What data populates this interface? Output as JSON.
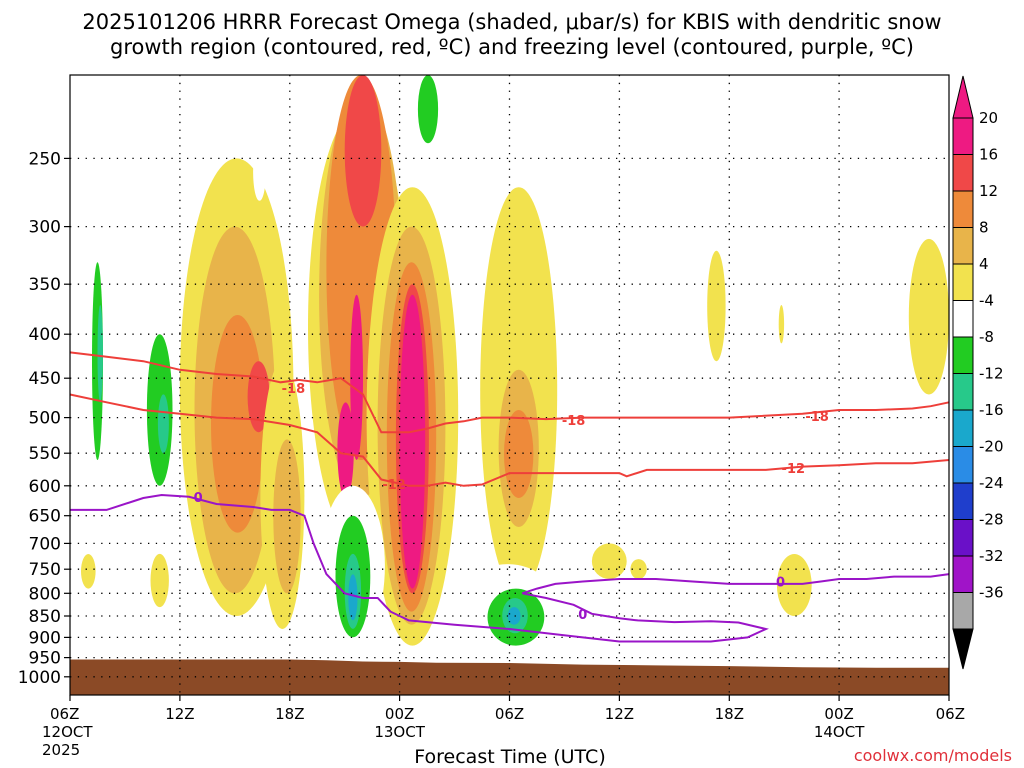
{
  "header": {
    "title_line1": "2025101206 HRRR Forecast Omega (shaded, μbar/s) for KBIS with dendritic snow",
    "title_line2": "growth region (contoured, red, ºC) and freezing level (contoured, purple, ºC)"
  },
  "footer": {
    "xlabel": "Forecast Time (UTC)",
    "credit": "coolwx.com/models"
  },
  "colors": {
    "ground": "#8b4a26",
    "snow_growth_contour": "#ee3f3a",
    "freezing_contour": "#9a14c8",
    "credit": "#e0303a",
    "grid": "#000000"
  },
  "chart_data": {
    "type": "heatmap",
    "y_axis": {
      "scale": "log-pressure",
      "reversed": true,
      "range": [
        200,
        1050
      ],
      "ticks": [
        250,
        300,
        350,
        400,
        450,
        500,
        550,
        600,
        650,
        700,
        750,
        800,
        850,
        900,
        950,
        1000
      ]
    },
    "x_axis": {
      "range": [
        "2025-10-12 06Z",
        "2025-10-14 06Z"
      ],
      "ticks": [
        {
          "hour": 0,
          "label": "06Z",
          "date": "12OCT",
          "year": "2025"
        },
        {
          "hour": 6,
          "label": "12Z",
          "date": "",
          "year": ""
        },
        {
          "hour": 12,
          "label": "18Z",
          "date": "",
          "year": ""
        },
        {
          "hour": 18,
          "label": "00Z",
          "date": "13OCT",
          "year": ""
        },
        {
          "hour": 24,
          "label": "06Z",
          "date": "",
          "year": ""
        },
        {
          "hour": 30,
          "label": "12Z",
          "date": "",
          "year": ""
        },
        {
          "hour": 36,
          "label": "18Z",
          "date": "",
          "year": ""
        },
        {
          "hour": 42,
          "label": "00Z",
          "date": "14OCT",
          "year": ""
        },
        {
          "hour": 48,
          "label": "06Z",
          "date": "",
          "year": ""
        }
      ]
    },
    "grid": true,
    "colorbar": {
      "labels": [
        "20",
        "16",
        "12",
        "8",
        "4",
        "-4",
        "-8",
        "-12",
        "-16",
        "-20",
        "-24",
        "-28",
        "-32",
        "-36"
      ],
      "colors": [
        "#ee1a82",
        "#f04848",
        "#ee8a3a",
        "#e8b44a",
        "#f2e24e",
        "#ffffff",
        "#22cc22",
        "#27c98a",
        "#1aa8cc",
        "#2a8ce6",
        "#1f3ecc",
        "#6a10c8",
        "#a014c8",
        "#a8a8a8"
      ],
      "upper_extend_color": "#ee1a82",
      "lower_extend_color": "#000000"
    },
    "omega_areas": [
      {
        "level": 4,
        "t0": 0.6,
        "t1": 1.4,
        "p0": 720,
        "p1": 790
      },
      {
        "level": -4,
        "t0": 0.8,
        "t1": 2.0,
        "p0": 270,
        "p1": 640
      },
      {
        "level": -8,
        "t0": 1.2,
        "t1": 1.8,
        "p0": 330,
        "p1": 560
      },
      {
        "level": -12,
        "t0": 1.5,
        "t1": 1.8,
        "p0": 370,
        "p1": 480
      },
      {
        "level": -4,
        "t0": 3.7,
        "t1": 4.7,
        "p0": 720,
        "p1": 890
      },
      {
        "level": 4,
        "t0": 4.4,
        "t1": 5.4,
        "p0": 720,
        "p1": 830
      },
      {
        "level": -4,
        "t0": 3.5,
        "t1": 6.3,
        "p0": 320,
        "p1": 650
      },
      {
        "level": -8,
        "t0": 4.2,
        "t1": 5.6,
        "p0": 400,
        "p1": 600
      },
      {
        "level": -12,
        "t0": 4.8,
        "t1": 5.4,
        "p0": 470,
        "p1": 550
      },
      {
        "level": -4,
        "t0": 5.3,
        "t1": 6.7,
        "p0": 820,
        "p1": 880
      },
      {
        "level": -4,
        "t0": 4.7,
        "t1": 5.7,
        "p0": 250,
        "p1": 350
      },
      {
        "level": -4,
        "t0": 5.2,
        "t1": 6.2,
        "p0": 200,
        "p1": 230
      },
      {
        "level": 4,
        "t0": 6.0,
        "t1": 12.2,
        "p0": 250,
        "p1": 850
      },
      {
        "level": 8,
        "t0": 6.8,
        "t1": 11.2,
        "p0": 300,
        "p1": 800
      },
      {
        "level": 12,
        "t0": 7.7,
        "t1": 10.6,
        "p0": 380,
        "p1": 680
      },
      {
        "level": 16,
        "t0": 9.7,
        "t1": 10.9,
        "p0": 430,
        "p1": 520
      },
      {
        "level": 16,
        "t0": 11.3,
        "t1": 12.1,
        "p0": 730,
        "p1": 800
      },
      {
        "level": 4,
        "t0": 10.4,
        "t1": 12.8,
        "p0": 430,
        "p1": 880
      },
      {
        "level": 8,
        "t0": 11.1,
        "t1": 12.6,
        "p0": 530,
        "p1": 800
      },
      {
        "level": -4,
        "t0": 12.5,
        "t1": 13.1,
        "p0": 850,
        "p1": 880
      },
      {
        "level": -4,
        "t0": 10.0,
        "t1": 10.7,
        "p0": 240,
        "p1": 280
      },
      {
        "level": -4,
        "t0": 8.2,
        "t1": 8.5,
        "p0": 200,
        "p1": 220
      },
      {
        "level": 4,
        "t0": 13.0,
        "t1": 18.5,
        "p0": 220,
        "p1": 700
      },
      {
        "level": 8,
        "t0": 13.6,
        "t1": 18.2,
        "p0": 210,
        "p1": 620
      },
      {
        "level": 12,
        "t0": 14.0,
        "t1": 17.8,
        "p0": 200,
        "p1": 560
      },
      {
        "level": 16,
        "t0": 15.0,
        "t1": 17.0,
        "p0": 200,
        "p1": 300
      },
      {
        "level": 20,
        "t0": 15.3,
        "t1": 16.0,
        "p0": 360,
        "p1": 560
      },
      {
        "level": 20,
        "t0": 14.6,
        "t1": 15.5,
        "p0": 480,
        "p1": 620
      },
      {
        "level": 4,
        "t0": 16.2,
        "t1": 21.2,
        "p0": 270,
        "p1": 920
      },
      {
        "level": 8,
        "t0": 16.8,
        "t1": 20.5,
        "p0": 300,
        "p1": 870
      },
      {
        "level": 12,
        "t0": 17.3,
        "t1": 20.0,
        "p0": 330,
        "p1": 840
      },
      {
        "level": 16,
        "t0": 17.8,
        "t1": 19.6,
        "p0": 350,
        "p1": 800
      },
      {
        "level": 20,
        "t0": 18.0,
        "t1": 19.4,
        "p0": 360,
        "p1": 790
      },
      {
        "level": -4,
        "t0": 18.3,
        "t1": 20.5,
        "p0": 200,
        "p1": 260
      },
      {
        "level": -8,
        "t0": 19.0,
        "t1": 20.1,
        "p0": 200,
        "p1": 240
      },
      {
        "level": -4,
        "t0": 13.7,
        "t1": 17.2,
        "p0": 600,
        "p1": 920
      },
      {
        "level": -8,
        "t0": 14.5,
        "t1": 16.4,
        "p0": 650,
        "p1": 900
      },
      {
        "level": -12,
        "t0": 15.0,
        "t1": 15.9,
        "p0": 720,
        "p1": 880
      },
      {
        "level": -16,
        "t0": 15.2,
        "t1": 15.7,
        "p0": 760,
        "p1": 860
      },
      {
        "level": 4,
        "t0": 22.4,
        "t1": 26.6,
        "p0": 270,
        "p1": 800
      },
      {
        "level": 8,
        "t0": 23.4,
        "t1": 25.6,
        "p0": 440,
        "p1": 670
      },
      {
        "level": 12,
        "t0": 23.7,
        "t1": 25.3,
        "p0": 490,
        "p1": 620
      },
      {
        "level": 4,
        "t0": 28.5,
        "t1": 30.4,
        "p0": 700,
        "p1": 770
      },
      {
        "level": 4,
        "t0": 30.6,
        "t1": 31.5,
        "p0": 730,
        "p1": 770
      },
      {
        "level": 4,
        "t0": 38.6,
        "t1": 40.5,
        "p0": 720,
        "p1": 850
      },
      {
        "level": -4,
        "t0": 21.0,
        "t1": 26.8,
        "p0": 740,
        "p1": 960
      },
      {
        "level": -8,
        "t0": 22.8,
        "t1": 25.9,
        "p0": 790,
        "p1": 920
      },
      {
        "level": -12,
        "t0": 23.6,
        "t1": 25.0,
        "p0": 810,
        "p1": 890
      },
      {
        "level": -16,
        "t0": 23.9,
        "t1": 24.6,
        "p0": 830,
        "p1": 870
      },
      {
        "level": -4,
        "t0": 27.9,
        "t1": 28.6,
        "p0": 460,
        "p1": 510
      },
      {
        "level": -4,
        "t0": 34.8,
        "t1": 35.8,
        "p0": 920,
        "p1": 950
      },
      {
        "level": -4,
        "t0": 44.3,
        "t1": 45.9,
        "p0": 870,
        "p1": 900
      },
      {
        "level": -4,
        "t0": 47.6,
        "t1": 48.0,
        "p0": 480,
        "p1": 580
      },
      {
        "level": 4,
        "t0": 34.8,
        "t1": 35.8,
        "p0": 320,
        "p1": 430
      },
      {
        "level": 4,
        "t0": 38.7,
        "t1": 39.0,
        "p0": 370,
        "p1": 410
      },
      {
        "level": 4,
        "t0": 45.8,
        "t1": 48.0,
        "p0": 310,
        "p1": 470
      }
    ],
    "snow_growth_region": [
      {
        "label": "-18",
        "points": [
          [
            0,
            420
          ],
          [
            2,
            425
          ],
          [
            4,
            430
          ],
          [
            6,
            440
          ],
          [
            8,
            445
          ],
          [
            10,
            448
          ],
          [
            11.5,
            455
          ],
          [
            12.5,
            452
          ],
          [
            13.5,
            455
          ],
          [
            14.8,
            450
          ],
          [
            16,
            470
          ],
          [
            17.0,
            520
          ],
          [
            18.5,
            520
          ],
          [
            19.5,
            515
          ],
          [
            20.5,
            508
          ],
          [
            21.5,
            505
          ],
          [
            22.5,
            500
          ],
          [
            24,
            500
          ],
          [
            26,
            502
          ],
          [
            28,
            500
          ],
          [
            30,
            500
          ],
          [
            32,
            500
          ],
          [
            36,
            500
          ],
          [
            40,
            495
          ],
          [
            42,
            490
          ],
          [
            44,
            490
          ],
          [
            46,
            488
          ],
          [
            47,
            485
          ],
          [
            48,
            480
          ]
        ]
      },
      {
        "label": "-12",
        "points": [
          [
            0,
            470
          ],
          [
            2,
            480
          ],
          [
            4,
            490
          ],
          [
            6,
            495
          ],
          [
            8,
            500
          ],
          [
            10,
            502
          ],
          [
            12,
            510
          ],
          [
            13.5,
            520
          ],
          [
            14.8,
            550
          ],
          [
            16,
            555
          ],
          [
            17.0,
            590
          ],
          [
            18.5,
            600
          ],
          [
            19.5,
            600
          ],
          [
            20.5,
            595
          ],
          [
            21.5,
            600
          ],
          [
            22.5,
            598
          ],
          [
            24,
            580
          ],
          [
            26,
            580
          ],
          [
            28,
            580
          ],
          [
            30,
            580
          ],
          [
            30.4,
            585
          ],
          [
            31.5,
            575
          ],
          [
            33,
            575
          ],
          [
            36,
            575
          ],
          [
            38,
            575
          ],
          [
            40,
            570
          ],
          [
            42,
            568
          ],
          [
            44,
            565
          ],
          [
            46,
            565
          ],
          [
            48,
            560
          ]
        ]
      }
    ],
    "freezing_level": [
      {
        "label": "0",
        "points": [
          [
            0,
            640
          ],
          [
            2,
            640
          ],
          [
            3.5,
            625
          ],
          [
            4,
            620
          ],
          [
            5,
            615
          ],
          [
            6.5,
            618
          ],
          [
            8,
            630
          ],
          [
            10,
            635
          ],
          [
            11,
            640
          ],
          [
            12,
            640
          ],
          [
            12.8,
            650
          ],
          [
            13.3,
            700
          ],
          [
            14,
            760
          ],
          [
            15,
            800
          ],
          [
            16,
            810
          ],
          [
            16.8,
            810
          ],
          [
            17.5,
            840
          ],
          [
            18.5,
            860
          ],
          [
            21,
            870
          ],
          [
            24,
            880
          ],
          [
            28,
            900
          ],
          [
            30,
            910
          ],
          [
            33,
            910
          ],
          [
            35,
            910
          ],
          [
            37,
            900
          ],
          [
            38,
            880
          ],
          [
            36.5,
            865
          ],
          [
            35,
            862
          ],
          [
            33,
            864
          ],
          [
            31,
            860
          ],
          [
            30,
            855
          ],
          [
            28.5,
            845
          ],
          [
            27.5,
            825
          ],
          [
            26,
            810
          ],
          [
            24.7,
            800
          ],
          [
            25.5,
            790
          ],
          [
            26.5,
            780
          ],
          [
            28,
            775
          ],
          [
            30,
            770
          ],
          [
            32,
            770
          ],
          [
            34,
            775
          ],
          [
            36,
            780
          ],
          [
            38,
            780
          ],
          [
            40,
            780
          ],
          [
            41,
            775
          ],
          [
            42,
            770
          ],
          [
            43.5,
            770
          ],
          [
            45,
            765
          ],
          [
            47,
            765
          ],
          [
            48,
            760
          ]
        ]
      }
    ],
    "ground_pressure": [
      [
        0,
        955
      ],
      [
        4,
        955
      ],
      [
        6,
        955
      ],
      [
        8,
        955
      ],
      [
        12,
        955
      ],
      [
        14,
        957
      ],
      [
        16,
        960
      ],
      [
        18,
        961
      ],
      [
        20,
        963
      ],
      [
        24,
        964
      ],
      [
        28,
        968
      ],
      [
        32,
        970
      ],
      [
        36,
        972
      ],
      [
        40,
        975
      ],
      [
        44,
        976
      ],
      [
        48,
        976
      ]
    ]
  }
}
